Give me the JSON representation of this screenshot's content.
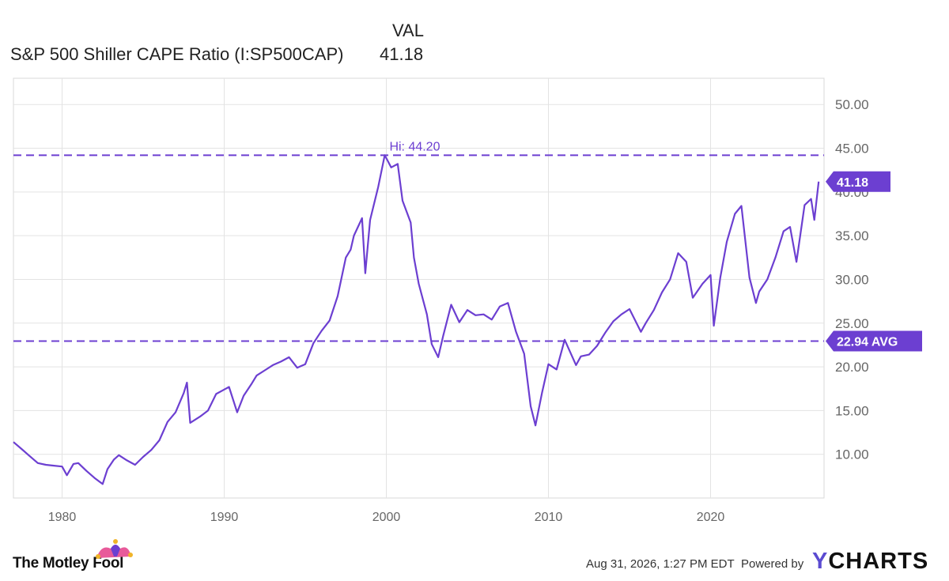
{
  "header": {
    "value_column_label": "VAL",
    "series_name": "S&P 500 Shiller CAPE Ratio (I:SP500CAP)",
    "series_value": "41.18"
  },
  "chart_data": {
    "type": "line",
    "series": [
      {
        "name": "S&P 500 Shiller CAPE Ratio (I:SP500CAP)",
        "color": "#6c3fd1",
        "points": [
          [
            1977.0,
            11.4
          ],
          [
            1977.5,
            10.6
          ],
          [
            1978.0,
            9.8
          ],
          [
            1978.5,
            9.0
          ],
          [
            1979.0,
            8.8
          ],
          [
            1979.5,
            8.7
          ],
          [
            1980.0,
            8.6
          ],
          [
            1980.3,
            7.6
          ],
          [
            1980.7,
            8.9
          ],
          [
            1981.0,
            9.0
          ],
          [
            1981.5,
            8.1
          ],
          [
            1982.0,
            7.3
          ],
          [
            1982.5,
            6.6
          ],
          [
            1982.8,
            8.3
          ],
          [
            1983.2,
            9.4
          ],
          [
            1983.5,
            9.9
          ],
          [
            1984.0,
            9.3
          ],
          [
            1984.5,
            8.8
          ],
          [
            1985.0,
            9.7
          ],
          [
            1985.5,
            10.5
          ],
          [
            1986.0,
            11.6
          ],
          [
            1986.5,
            13.7
          ],
          [
            1987.0,
            14.8
          ],
          [
            1987.5,
            17.0
          ],
          [
            1987.7,
            18.2
          ],
          [
            1987.9,
            13.6
          ],
          [
            1988.5,
            14.3
          ],
          [
            1989.0,
            15.0
          ],
          [
            1989.5,
            16.9
          ],
          [
            1990.0,
            17.4
          ],
          [
            1990.3,
            17.7
          ],
          [
            1990.8,
            14.8
          ],
          [
            1991.2,
            16.7
          ],
          [
            1991.7,
            18.1
          ],
          [
            1992.0,
            19.0
          ],
          [
            1992.5,
            19.6
          ],
          [
            1993.0,
            20.2
          ],
          [
            1993.5,
            20.6
          ],
          [
            1994.0,
            21.1
          ],
          [
            1994.5,
            19.9
          ],
          [
            1995.0,
            20.3
          ],
          [
            1995.5,
            22.7
          ],
          [
            1996.0,
            24.1
          ],
          [
            1996.5,
            25.3
          ],
          [
            1997.0,
            28.1
          ],
          [
            1997.5,
            32.5
          ],
          [
            1997.8,
            33.4
          ],
          [
            1998.0,
            35.0
          ],
          [
            1998.5,
            37.0
          ],
          [
            1998.7,
            30.7
          ],
          [
            1999.0,
            36.8
          ],
          [
            1999.5,
            40.6
          ],
          [
            1999.9,
            44.2
          ],
          [
            2000.3,
            42.8
          ],
          [
            2000.7,
            43.2
          ],
          [
            2001.0,
            39.0
          ],
          [
            2001.5,
            36.5
          ],
          [
            2001.7,
            32.5
          ],
          [
            2002.0,
            29.5
          ],
          [
            2002.5,
            26.0
          ],
          [
            2002.8,
            22.6
          ],
          [
            2003.2,
            21.1
          ],
          [
            2003.5,
            23.5
          ],
          [
            2004.0,
            27.1
          ],
          [
            2004.5,
            25.1
          ],
          [
            2005.0,
            26.5
          ],
          [
            2005.5,
            25.9
          ],
          [
            2006.0,
            26.0
          ],
          [
            2006.5,
            25.4
          ],
          [
            2007.0,
            26.9
          ],
          [
            2007.5,
            27.3
          ],
          [
            2008.0,
            24.0
          ],
          [
            2008.5,
            21.5
          ],
          [
            2008.9,
            15.5
          ],
          [
            2009.2,
            13.3
          ],
          [
            2009.6,
            17.0
          ],
          [
            2010.0,
            20.3
          ],
          [
            2010.5,
            19.7
          ],
          [
            2011.0,
            23.1
          ],
          [
            2011.7,
            20.2
          ],
          [
            2012.0,
            21.2
          ],
          [
            2012.5,
            21.4
          ],
          [
            2013.0,
            22.4
          ],
          [
            2013.5,
            23.9
          ],
          [
            2014.0,
            25.2
          ],
          [
            2014.5,
            26.0
          ],
          [
            2015.0,
            26.6
          ],
          [
            2015.7,
            24.0
          ],
          [
            2016.0,
            25.0
          ],
          [
            2016.5,
            26.5
          ],
          [
            2017.0,
            28.5
          ],
          [
            2017.5,
            30.0
          ],
          [
            2018.0,
            33.0
          ],
          [
            2018.5,
            32.0
          ],
          [
            2018.9,
            27.9
          ],
          [
            2019.5,
            29.5
          ],
          [
            2020.0,
            30.5
          ],
          [
            2020.2,
            24.7
          ],
          [
            2020.6,
            30.2
          ],
          [
            2021.0,
            34.3
          ],
          [
            2021.5,
            37.5
          ],
          [
            2021.9,
            38.4
          ],
          [
            2022.4,
            30.2
          ],
          [
            2022.8,
            27.3
          ],
          [
            2023.0,
            28.6
          ],
          [
            2023.5,
            30.0
          ],
          [
            2024.0,
            32.5
          ],
          [
            2024.5,
            35.5
          ],
          [
            2024.9,
            36.0
          ],
          [
            2025.3,
            32.0
          ],
          [
            2025.8,
            38.5
          ],
          [
            2026.2,
            39.2
          ],
          [
            2026.4,
            36.8
          ],
          [
            2026.67,
            41.18
          ]
        ]
      }
    ],
    "xlim": [
      1977.0,
      2027.0
    ],
    "ylim": [
      5.0,
      53.0
    ],
    "x_ticks": [
      "1980",
      "1990",
      "2000",
      "2010",
      "2020"
    ],
    "y_ticks": [
      "10.00",
      "15.00",
      "20.00",
      "25.00",
      "30.00",
      "35.00",
      "40.00",
      "45.00",
      "50.00"
    ],
    "y_axis_side": "right",
    "grid": true,
    "reference_lines": [
      {
        "value": 44.2,
        "label": "Hi: 44.20",
        "style": "dashed",
        "x": 1999.9
      },
      {
        "value": 22.94,
        "label": "22.94 AVG",
        "style": "dashed"
      }
    ],
    "current_value": {
      "value": 41.18,
      "label": "41.18"
    },
    "accent_color": "#6c3fd1"
  },
  "footer": {
    "brand": "The Motley Fool",
    "timestamp": "Aug 31, 2026, 1:27 PM EDT",
    "powered_by": "Powered by",
    "provider_y": "Y",
    "provider_rest": "CHARTS"
  }
}
